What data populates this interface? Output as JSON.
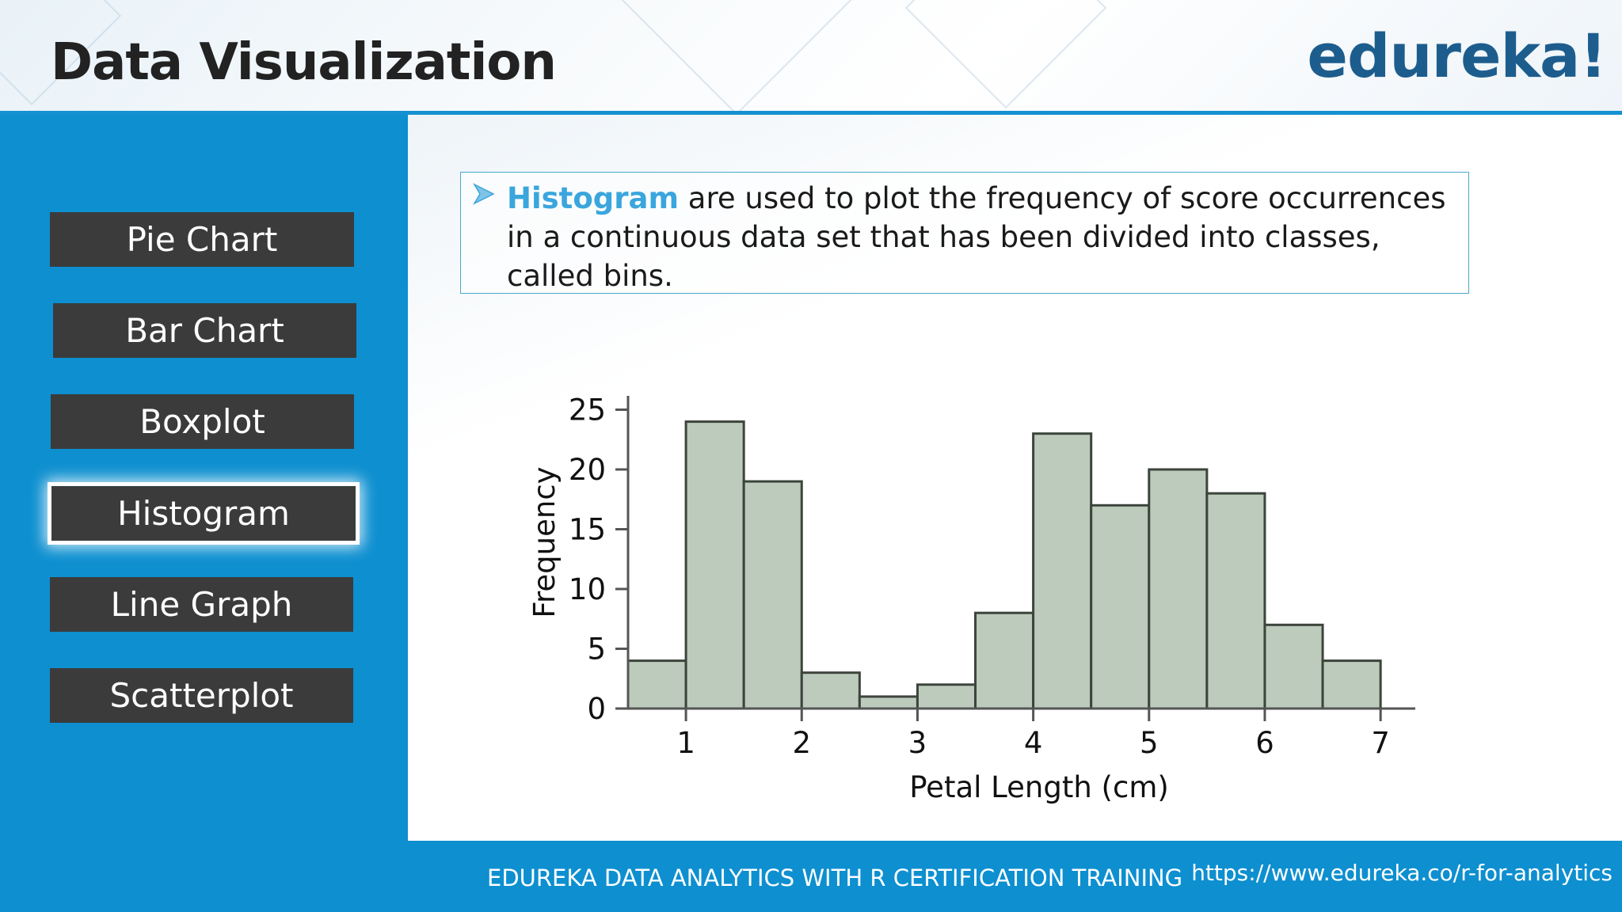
{
  "header": {
    "title": "Data Visualization",
    "logo_text": "edureka!"
  },
  "sidebar": {
    "items": [
      {
        "label": "Pie Chart",
        "active": false
      },
      {
        "label": "Bar Chart",
        "active": false
      },
      {
        "label": "Boxplot",
        "active": false
      },
      {
        "label": "Histogram",
        "active": true
      },
      {
        "label": "Line Graph",
        "active": false
      },
      {
        "label": "Scatterplot",
        "active": false
      }
    ]
  },
  "info": {
    "term": "Histogram",
    "text": " are used to plot the frequency of score occurrences in a continuous data set that has been divided into classes, called bins.",
    "bullet_icon": "arrow-bullet-icon"
  },
  "chart_data": {
    "type": "bar",
    "histogram": true,
    "xlabel": "Petal Length (cm)",
    "ylabel": "Frequency",
    "xlim": [
      0.5,
      7.3
    ],
    "ylim": [
      0,
      26
    ],
    "xticks": [
      1,
      2,
      3,
      4,
      5,
      6,
      7
    ],
    "yticks": [
      0,
      5,
      10,
      15,
      20,
      25
    ],
    "bins": [
      {
        "x0": 0.5,
        "x1": 1.0,
        "value": 4
      },
      {
        "x0": 1.0,
        "x1": 1.5,
        "value": 24
      },
      {
        "x0": 1.5,
        "x1": 2.0,
        "value": 19
      },
      {
        "x0": 2.0,
        "x1": 2.5,
        "value": 3
      },
      {
        "x0": 2.5,
        "x1": 3.0,
        "value": 1
      },
      {
        "x0": 3.0,
        "x1": 3.5,
        "value": 2
      },
      {
        "x0": 3.5,
        "x1": 4.0,
        "value": 8
      },
      {
        "x0": 4.0,
        "x1": 4.5,
        "value": 23
      },
      {
        "x0": 4.5,
        "x1": 5.0,
        "value": 17
      },
      {
        "x0": 5.0,
        "x1": 5.5,
        "value": 20
      },
      {
        "x0": 5.5,
        "x1": 6.0,
        "value": 18
      },
      {
        "x0": 6.0,
        "x1": 6.5,
        "value": 7
      },
      {
        "x0": 6.5,
        "x1": 7.0,
        "value": 4
      }
    ],
    "grid": false,
    "bar_color": "#bccbbb",
    "bar_edge_color": "#3c443c"
  },
  "footer": {
    "title": "EDUREKA DATA ANALYTICS WITH R CERTIFICATION TRAINING",
    "url": "https://www.edureka.co/r-for-analytics"
  },
  "colors": {
    "primary_blue": "#0d8fd0",
    "nav_button": "#3b3b3b",
    "accent_term": "#3aa6dd",
    "logo": "#1d5d8e"
  }
}
